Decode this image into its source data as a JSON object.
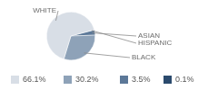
{
  "chart_data": {
    "type": "pie",
    "categories": [
      "WHITE",
      "BLACK",
      "ASIAN",
      "HISPANIC"
    ],
    "values": [
      66.1,
      30.2,
      3.5,
      0.1
    ],
    "value_labels": [
      "66.1%",
      "30.2%",
      "3.5%",
      "0.1%"
    ],
    "colors": [
      "#d8dee6",
      "#8ea2b8",
      "#5c7898",
      "#2b4a6d"
    ],
    "legend": "bottom"
  }
}
